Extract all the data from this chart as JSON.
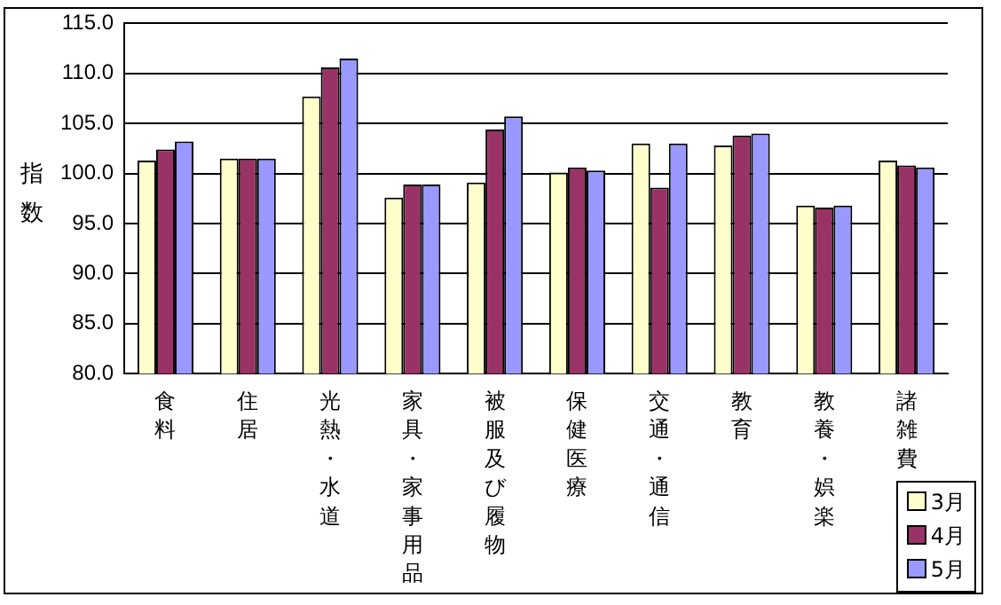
{
  "chart_data": {
    "type": "bar",
    "ylabel": "指数",
    "categories": [
      "食料",
      "住居",
      "光熱・水道",
      "家具・家事用品",
      "被服及び履物",
      "保健医療",
      "交通・通信",
      "教育",
      "教養・娯楽",
      "諸雑費"
    ],
    "series": [
      {
        "name": "3月",
        "color": "#ffffcc",
        "values": [
          101.3,
          101.5,
          107.7,
          97.6,
          99.1,
          100.1,
          103.0,
          102.8,
          96.8,
          101.3
        ]
      },
      {
        "name": "4月",
        "color": "#993366",
        "values": [
          102.4,
          101.5,
          110.6,
          98.9,
          104.4,
          100.6,
          98.6,
          103.8,
          96.6,
          100.8
        ]
      },
      {
        "name": "5月",
        "color": "#9999ff",
        "values": [
          103.2,
          101.5,
          111.5,
          98.9,
          105.7,
          100.3,
          103.0,
          104.0,
          96.8,
          100.6
        ]
      }
    ],
    "ylim": [
      80,
      115
    ],
    "yticks": [
      {
        "value": 80,
        "label": "80.0"
      },
      {
        "value": 85,
        "label": "85.0"
      },
      {
        "value": 90,
        "label": "90.0"
      },
      {
        "value": 95,
        "label": "95.0"
      },
      {
        "value": 100,
        "label": "100.0"
      },
      {
        "value": 105,
        "label": "105.0"
      },
      {
        "value": 110,
        "label": "110.0"
      },
      {
        "value": 115,
        "label": "115.0"
      }
    ],
    "grid": "y",
    "legend": "bottom right"
  }
}
